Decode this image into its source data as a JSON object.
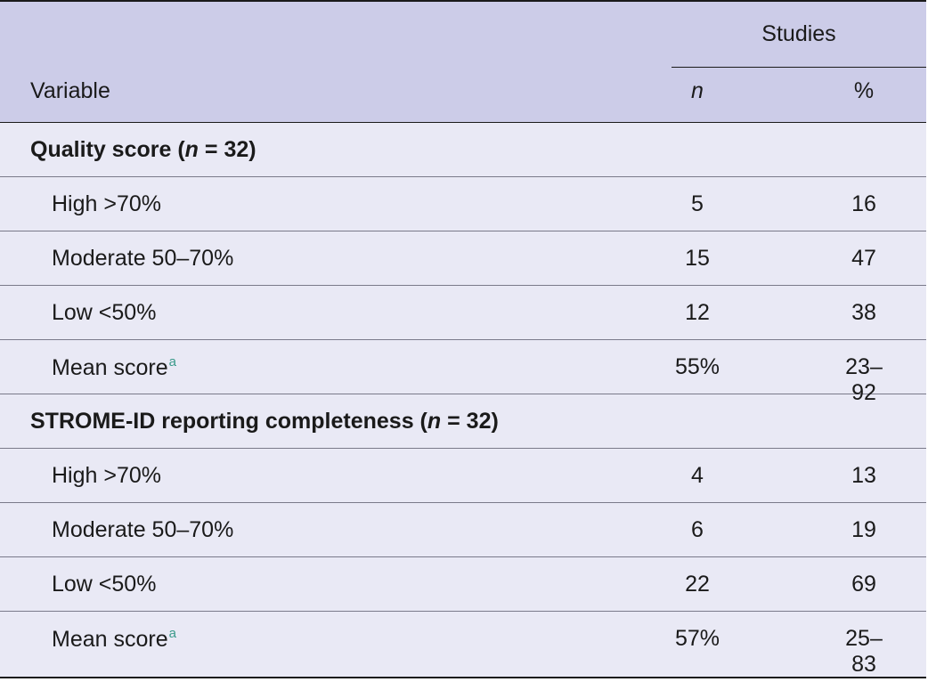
{
  "header": {
    "group_label": "Studies",
    "variable_label": "Variable",
    "n_label": "n",
    "pct_label": "%"
  },
  "sections": [
    {
      "title_prefix": "Quality score (",
      "title_n": "n",
      "title_suffix": " = 32)",
      "rows": [
        {
          "label": "High >70%",
          "n": "5",
          "pct": "16"
        },
        {
          "label": "Moderate 50–70%",
          "n": "15",
          "pct": "47"
        },
        {
          "label": "Low <50%",
          "n": "12",
          "pct": "38"
        },
        {
          "label": "Mean score",
          "footnote": "a",
          "n": "55%",
          "pct": "23–92"
        }
      ]
    },
    {
      "title_prefix": "STROME-ID reporting completeness (",
      "title_n": "n",
      "title_suffix": " = 32)",
      "rows": [
        {
          "label": "High >70%",
          "n": "4",
          "pct": "13"
        },
        {
          "label": "Moderate 50–70%",
          "n": "6",
          "pct": "19"
        },
        {
          "label": "Low <50%",
          "n": "22",
          "pct": "69"
        },
        {
          "label": "Mean score",
          "footnote": "a",
          "n": "57%",
          "pct": "25–83"
        }
      ]
    }
  ]
}
